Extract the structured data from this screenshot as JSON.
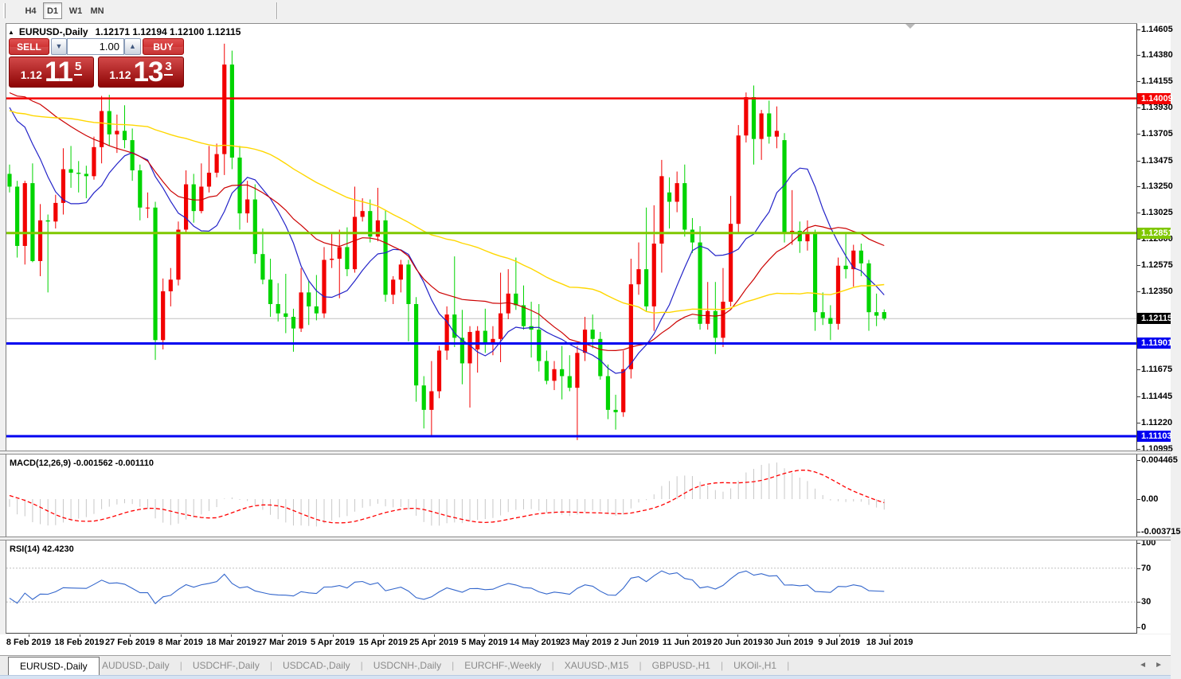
{
  "toolbar": {
    "timeframes": [
      {
        "label": "H4",
        "active": false
      },
      {
        "label": "D1",
        "active": true
      },
      {
        "label": "W1",
        "active": false
      },
      {
        "label": "MN",
        "active": false
      }
    ]
  },
  "chart": {
    "title": {
      "collapse_arrow": "▲",
      "symbol": "EURUSD-,Daily",
      "ohlc": "1.12171 1.12194 1.12100 1.12115"
    }
  },
  "trade_panel": {
    "sell_label": "SELL",
    "buy_label": "BUY",
    "volume_value": "1.00",
    "spin_down_icon": "▼",
    "spin_up_icon": "▲",
    "sell_price": {
      "prefix": "1.12",
      "big": "11",
      "pip": "5"
    },
    "buy_price": {
      "prefix": "1.12",
      "big": "13",
      "pip": "3"
    }
  },
  "price_axis": {
    "ticks": [
      "1.14605",
      "1.14380",
      "1.14155",
      "1.13930",
      "1.13705",
      "1.13475",
      "1.13250",
      "1.13025",
      "1.12800",
      "1.12575",
      "1.12350",
      "1.11675",
      "1.11445",
      "1.11220",
      "1.10995"
    ],
    "badges": [
      {
        "text": "1.14009",
        "bg": "#f40000"
      },
      {
        "text": "1.12851",
        "bg": "#7fc700"
      },
      {
        "text": "1.12115",
        "bg": "#000000"
      },
      {
        "text": "1.11901",
        "bg": "#0000f0"
      },
      {
        "text": "1.11103",
        "bg": "#0000f0"
      }
    ]
  },
  "indicators": {
    "macd": {
      "label": "MACD(12,26,9) -0.001562 -0.001110",
      "axis": [
        "0.004465",
        "0.00",
        "-0.003715"
      ]
    },
    "rsi": {
      "label": "RSI(14) 42.4230",
      "axis": [
        "100",
        "70",
        "30",
        "0"
      ]
    }
  },
  "time_axis": {
    "labels": [
      "8 Feb 2019",
      "18 Feb 2019",
      "27 Feb 2019",
      "8 Mar 2019",
      "18 Mar 2019",
      "27 Mar 2019",
      "5 Apr 2019",
      "15 Apr 2019",
      "25 Apr 2019",
      "5 May 2019",
      "14 May 2019",
      "23 May 2019",
      "2 Jun 2019",
      "11 Jun 2019",
      "20 Jun 2019",
      "30 Jun 2019",
      "9 Jul 2019",
      "18 Jul 2019"
    ]
  },
  "tabs": {
    "active": "EURUSD-,Daily",
    "inactive": [
      "AUDUSD-,Daily",
      "USDCHF-,Daily",
      "USDCAD-,Daily",
      "USDCNH-,Daily",
      "EURCHF-,Weekly",
      "XAUUSD-,M15",
      "GBPUSD-,H1",
      "UKOil-,H1"
    ],
    "nav_left_icon": "◄",
    "nav_right_icon": "►"
  },
  "chart_data": {
    "type": "candlestick",
    "symbol": "EURUSD-",
    "timeframe": "Daily",
    "up_color": "#f20000",
    "down_color": "#00d400",
    "price_top": 1.1465,
    "price_bottom": 1.1098,
    "hlines": [
      {
        "price": 1.14009,
        "color": "#f40000",
        "width": 2.5
      },
      {
        "price": 1.12851,
        "color": "#7fc700",
        "width": 3
      },
      {
        "price": 1.11901,
        "color": "#0000f0",
        "width": 3
      },
      {
        "price": 1.11103,
        "color": "#0000f0",
        "width": 3
      }
    ],
    "bid_line": {
      "price": 1.12115,
      "color": "#c0c0c0"
    },
    "moving_averages": [
      {
        "period": 10,
        "color": "#2323c8"
      },
      {
        "period": 25,
        "color": "#cc0000"
      },
      {
        "period": 55,
        "color": "#ffd700"
      }
    ],
    "macd": {
      "fast": 12,
      "slow": 26,
      "signal": 9,
      "hist_color": "#c8c8c8",
      "signal_color": "#ff0000",
      "axis_max": 0.004465,
      "axis_min": -0.003715,
      "current": [
        -0.001562,
        -0.00111
      ]
    },
    "rsi": {
      "period": 14,
      "color": "#3366cc",
      "levels": [
        30,
        70
      ],
      "range": [
        0,
        100
      ],
      "current": 42.423
    },
    "candles": [
      [
        1.1336,
        1.1344,
        1.132,
        1.1325
      ],
      [
        1.1325,
        1.133,
        1.1264,
        1.1274
      ],
      [
        1.1274,
        1.133,
        1.1258,
        1.1328
      ],
      [
        1.1328,
        1.1345,
        1.126,
        1.1261
      ],
      [
        1.1261,
        1.131,
        1.1248,
        1.1296
      ],
      [
        1.1296,
        1.1301,
        1.1234,
        1.1295
      ],
      [
        1.1295,
        1.1318,
        1.1289,
        1.1311
      ],
      [
        1.1311,
        1.1358,
        1.1301,
        1.134
      ],
      [
        1.134,
        1.136,
        1.1324,
        1.1337
      ],
      [
        1.1337,
        1.1347,
        1.132,
        1.1336
      ],
      [
        1.1336,
        1.1343,
        1.1315,
        1.1334
      ],
      [
        1.1334,
        1.1368,
        1.1331,
        1.1359
      ],
      [
        1.1359,
        1.1403,
        1.1345,
        1.139
      ],
      [
        1.139,
        1.1404,
        1.136,
        1.137
      ],
      [
        1.137,
        1.1387,
        1.1354,
        1.1373
      ],
      [
        1.1373,
        1.1395,
        1.1358,
        1.1365
      ],
      [
        1.1365,
        1.1375,
        1.133,
        1.1339
      ],
      [
        1.1339,
        1.1344,
        1.1296,
        1.1307
      ],
      [
        1.1307,
        1.132,
        1.1298,
        1.1307
      ],
      [
        1.1307,
        1.1312,
        1.1176,
        1.1193
      ],
      [
        1.1193,
        1.1246,
        1.1185,
        1.1235
      ],
      [
        1.1235,
        1.1255,
        1.1222,
        1.1245
      ],
      [
        1.1245,
        1.1295,
        1.124,
        1.1288
      ],
      [
        1.1288,
        1.1339,
        1.1285,
        1.1327
      ],
      [
        1.1327,
        1.1336,
        1.1294,
        1.1304
      ],
      [
        1.1304,
        1.1345,
        1.1302,
        1.1325
      ],
      [
        1.1325,
        1.136,
        1.132,
        1.1337
      ],
      [
        1.1337,
        1.1362,
        1.1333,
        1.1353
      ],
      [
        1.1353,
        1.1448,
        1.1335,
        1.143
      ],
      [
        1.143,
        1.1442,
        1.134,
        1.135
      ],
      [
        1.135,
        1.136,
        1.1288,
        1.1302
      ],
      [
        1.1302,
        1.133,
        1.1294,
        1.1314
      ],
      [
        1.1314,
        1.1327,
        1.1259,
        1.1267
      ],
      [
        1.1267,
        1.1289,
        1.1241,
        1.1245
      ],
      [
        1.1245,
        1.1263,
        1.1213,
        1.1224
      ],
      [
        1.1224,
        1.1242,
        1.1209,
        1.1216
      ],
      [
        1.1216,
        1.125,
        1.1199,
        1.1213
      ],
      [
        1.1213,
        1.122,
        1.1183,
        1.1203
      ],
      [
        1.1203,
        1.1255,
        1.12,
        1.1234
      ],
      [
        1.1234,
        1.1244,
        1.1206,
        1.1222
      ],
      [
        1.1222,
        1.1249,
        1.121,
        1.1216
      ],
      [
        1.1216,
        1.1273,
        1.1212,
        1.1262
      ],
      [
        1.1262,
        1.1285,
        1.1255,
        1.1263
      ],
      [
        1.1263,
        1.1288,
        1.1229,
        1.1273
      ],
      [
        1.1273,
        1.129,
        1.1248,
        1.1254
      ],
      [
        1.1254,
        1.1325,
        1.1251,
        1.1299
      ],
      [
        1.1299,
        1.1315,
        1.1295,
        1.1304
      ],
      [
        1.1304,
        1.1314,
        1.1277,
        1.1282
      ],
      [
        1.1282,
        1.1324,
        1.1278,
        1.1296
      ],
      [
        1.1296,
        1.1305,
        1.1226,
        1.1232
      ],
      [
        1.1232,
        1.1248,
        1.1224,
        1.1245
      ],
      [
        1.1245,
        1.1262,
        1.1234,
        1.1258
      ],
      [
        1.1258,
        1.1262,
        1.1192,
        1.1224
      ],
      [
        1.1224,
        1.123,
        1.114,
        1.1154
      ],
      [
        1.1154,
        1.1162,
        1.1117,
        1.1133
      ],
      [
        1.1133,
        1.1175,
        1.1111,
        1.1149
      ],
      [
        1.1149,
        1.1188,
        1.1143,
        1.1184
      ],
      [
        1.1184,
        1.1222,
        1.1176,
        1.1215
      ],
      [
        1.1215,
        1.1265,
        1.1187,
        1.1195
      ],
      [
        1.1195,
        1.1219,
        1.1155,
        1.1173
      ],
      [
        1.1173,
        1.1205,
        1.1135,
        1.12
      ],
      [
        1.1185,
        1.1205,
        1.1165,
        1.1201
      ],
      [
        1.1201,
        1.122,
        1.1182,
        1.1191
      ],
      [
        1.1191,
        1.1205,
        1.118,
        1.1194
      ],
      [
        1.1194,
        1.1251,
        1.1174,
        1.1216
      ],
      [
        1.1216,
        1.1254,
        1.1211,
        1.1233
      ],
      [
        1.1233,
        1.1264,
        1.1219,
        1.1223
      ],
      [
        1.1223,
        1.124,
        1.1202,
        1.1205
      ],
      [
        1.1205,
        1.1226,
        1.1178,
        1.1202
      ],
      [
        1.1202,
        1.1224,
        1.1166,
        1.1175
      ],
      [
        1.1175,
        1.1184,
        1.1155,
        1.1158
      ],
      [
        1.1158,
        1.1175,
        1.115,
        1.1168
      ],
      [
        1.1168,
        1.1188,
        1.1142,
        1.1162
      ],
      [
        1.1162,
        1.118,
        1.1149,
        1.1152
      ],
      [
        1.1152,
        1.1188,
        1.1107,
        1.1182
      ],
      [
        1.1182,
        1.1213,
        1.1175,
        1.1202
      ],
      [
        1.1202,
        1.1215,
        1.1186,
        1.1194
      ],
      [
        1.1194,
        1.12,
        1.1159,
        1.1162
      ],
      [
        1.1162,
        1.1172,
        1.1125,
        1.1133
      ],
      [
        1.1133,
        1.1146,
        1.1116,
        1.1131
      ],
      [
        1.1131,
        1.1184,
        1.1127,
        1.1168
      ],
      [
        1.1168,
        1.1263,
        1.116,
        1.1241
      ],
      [
        1.1241,
        1.1277,
        1.1232,
        1.1254
      ],
      [
        1.1254,
        1.1307,
        1.1218,
        1.1222
      ],
      [
        1.1222,
        1.1309,
        1.1201,
        1.1276
      ],
      [
        1.1276,
        1.1348,
        1.1251,
        1.1334
      ],
      [
        1.132,
        1.1333,
        1.1289,
        1.1312
      ],
      [
        1.1312,
        1.1338,
        1.1303,
        1.1328
      ],
      [
        1.1328,
        1.1344,
        1.1282,
        1.1288
      ],
      [
        1.1288,
        1.1298,
        1.1268,
        1.1277
      ],
      [
        1.1277,
        1.1291,
        1.1202,
        1.1207
      ],
      [
        1.1207,
        1.1243,
        1.1202,
        1.1218
      ],
      [
        1.1218,
        1.1243,
        1.1181,
        1.1195
      ],
      [
        1.1195,
        1.1255,
        1.1187,
        1.1226
      ],
      [
        1.1226,
        1.1317,
        1.1222,
        1.1293
      ],
      [
        1.1293,
        1.1378,
        1.1285,
        1.1369
      ],
      [
        1.1369,
        1.1406,
        1.1363,
        1.1402
      ],
      [
        1.1402,
        1.1412,
        1.1344,
        1.1366
      ],
      [
        1.1366,
        1.1391,
        1.1348,
        1.1388
      ],
      [
        1.1388,
        1.1399,
        1.1362,
        1.1368
      ],
      [
        1.1368,
        1.1394,
        1.1358,
        1.1373
      ],
      [
        1.1365,
        1.1371,
        1.1277,
        1.1285
      ],
      [
        1.1285,
        1.1322,
        1.1275,
        1.1287
      ],
      [
        1.1287,
        1.1295,
        1.1268,
        1.1278
      ],
      [
        1.1278,
        1.1296,
        1.127,
        1.1285
      ],
      [
        1.1285,
        1.1288,
        1.1201,
        1.1217
      ],
      [
        1.1217,
        1.1234,
        1.1206,
        1.1212
      ],
      [
        1.1212,
        1.1223,
        1.1193,
        1.1207
      ],
      [
        1.1207,
        1.1264,
        1.1202,
        1.1257
      ],
      [
        1.1257,
        1.1285,
        1.1246,
        1.1254
      ],
      [
        1.1254,
        1.1275,
        1.1239,
        1.127
      ],
      [
        1.127,
        1.1276,
        1.1248,
        1.1259
      ],
      [
        1.1259,
        1.1262,
        1.1201,
        1.1217
      ],
      [
        1.1217,
        1.1233,
        1.1205,
        1.1214
      ],
      [
        1.12171,
        1.12194,
        1.121,
        1.12115
      ]
    ]
  }
}
